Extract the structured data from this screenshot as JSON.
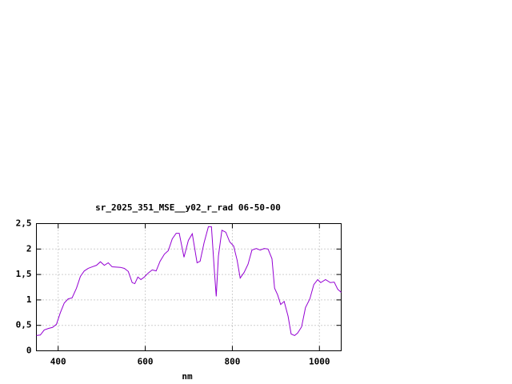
{
  "chart_data": {
    "type": "line",
    "title": "sr_2025_351_MSE__y02_r_rad 06-50-00",
    "x_label": "nm",
    "xlim": [
      350,
      1050
    ],
    "xticks": [
      400,
      600,
      800,
      1000
    ],
    "ylim": [
      0,
      2.5
    ],
    "yticks": [
      0,
      {
        "value": 0.5,
        "label": "0,5"
      },
      1,
      {
        "value": 1.5,
        "label": "1,5"
      },
      2,
      {
        "value": 2.5,
        "label": "2,5"
      }
    ],
    "grid": true,
    "series": [
      {
        "color": "#9400d3",
        "x": [
          350,
          359,
          368,
          378,
          387,
          396,
          405,
          414,
          423,
          432,
          442,
          451,
          460,
          469,
          478,
          488,
          497,
          506,
          515,
          524,
          543,
          552,
          561,
          570,
          576,
          583,
          590,
          598,
          607,
          616,
          625,
          634,
          644,
          653,
          662,
          671,
          678,
          689,
          699,
          708,
          719,
          726,
          735,
          745,
          752,
          759,
          763,
          768,
          776,
          785,
          794,
          803,
          811,
          818,
          827,
          836,
          845,
          855,
          864,
          873,
          882,
          891,
          897,
          904,
          911,
          919,
          928,
          935,
          943,
          950,
          959,
          968,
          978,
          987,
          996,
          1003,
          1014,
          1025,
          1034,
          1042,
          1050
        ],
        "values": [
          0.3,
          0.31,
          0.41,
          0.44,
          0.46,
          0.52,
          0.75,
          0.94,
          1.02,
          1.04,
          1.23,
          1.46,
          1.57,
          1.62,
          1.65,
          1.68,
          1.75,
          1.68,
          1.73,
          1.65,
          1.64,
          1.62,
          1.56,
          1.34,
          1.32,
          1.45,
          1.4,
          1.45,
          1.53,
          1.59,
          1.57,
          1.76,
          1.9,
          1.97,
          2.2,
          2.31,
          2.31,
          1.84,
          2.17,
          2.3,
          1.73,
          1.76,
          2.12,
          2.44,
          2.44,
          1.54,
          1.07,
          1.86,
          2.37,
          2.33,
          2.14,
          2.06,
          1.78,
          1.43,
          1.54,
          1.7,
          1.98,
          2.01,
          1.98,
          2.01,
          2.0,
          1.81,
          1.23,
          1.1,
          0.91,
          0.97,
          0.68,
          0.33,
          0.3,
          0.35,
          0.47,
          0.85,
          1.02,
          1.3,
          1.4,
          1.34,
          1.4,
          1.34,
          1.35,
          1.21,
          1.15
        ]
      }
    ]
  }
}
